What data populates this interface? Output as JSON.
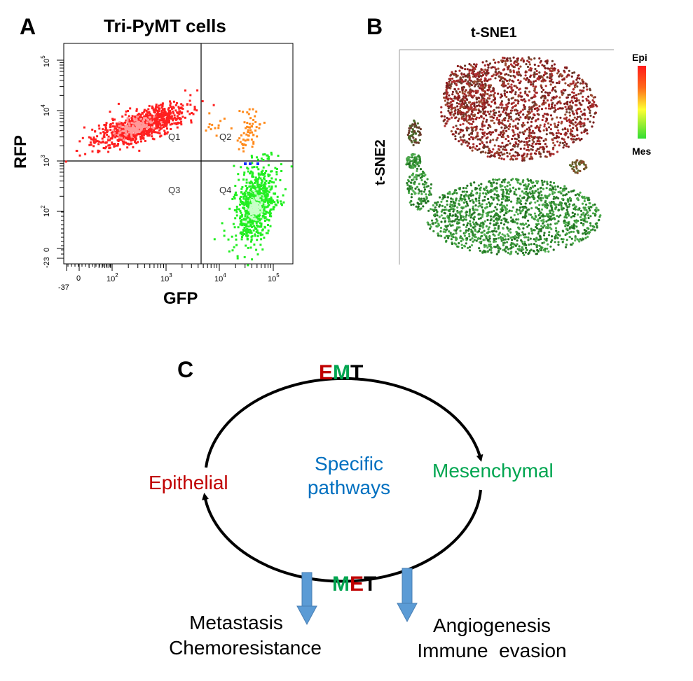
{
  "panel_a": {
    "letter": "A",
    "title": "Tri-PyMT cells",
    "xlabel": "GFP",
    "ylabel": "RFP",
    "x_ticks": [
      {
        "base": "",
        "exp": "",
        "plain": "-37"
      },
      {
        "base": "",
        "exp": "",
        "plain": "0"
      },
      {
        "base": "10",
        "exp": "2",
        "plain": ""
      },
      {
        "base": "10",
        "exp": "3",
        "plain": ""
      },
      {
        "base": "10",
        "exp": "4",
        "plain": ""
      },
      {
        "base": "10",
        "exp": "5",
        "plain": ""
      }
    ],
    "y_ticks": [
      {
        "base": "",
        "exp": "",
        "plain": "-23"
      },
      {
        "base": "",
        "exp": "",
        "plain": "0"
      },
      {
        "base": "10",
        "exp": "2",
        "plain": ""
      },
      {
        "base": "10",
        "exp": "3",
        "plain": ""
      },
      {
        "base": "10",
        "exp": "4",
        "plain": ""
      },
      {
        "base": "10",
        "exp": "5",
        "plain": ""
      }
    ],
    "quadrants": [
      "Q1",
      "Q2",
      "Q3",
      "Q4"
    ],
    "colors": {
      "q1": "#ff2020",
      "q2": "#ff8a1c",
      "q4": "#22ee22",
      "frame": "#000000"
    }
  },
  "panel_b": {
    "letter": "B",
    "xlabel": "t-SNE1",
    "ylabel": "t-SNE2",
    "colorbar": {
      "top_label": "Epi",
      "bottom_label": "Mes",
      "colors": [
        "#ff1a1a",
        "#ffff33",
        "#33dd33"
      ]
    },
    "colors": {
      "epi": "#8b1a1a",
      "mes": "#2e8b2e"
    }
  },
  "panel_c": {
    "letter": "C",
    "emt": [
      "E",
      "M",
      "T"
    ],
    "met": [
      "M",
      "E",
      "T"
    ],
    "epithelial": "Epithelial",
    "mesenchymal": "Mesenchymal",
    "center_line1": "Specific",
    "center_line2": "pathways",
    "left_out_line1": "Metastasis",
    "left_out_line2": "Chemoresistance",
    "right_out_line1": "Angiogenesis",
    "right_out_line2": "Immune  evasion",
    "colors": {
      "epi": "#c00000",
      "mes": "#00a550",
      "blue": "#0070c0",
      "arrow": "#5b9bd5",
      "black": "#000000"
    }
  }
}
